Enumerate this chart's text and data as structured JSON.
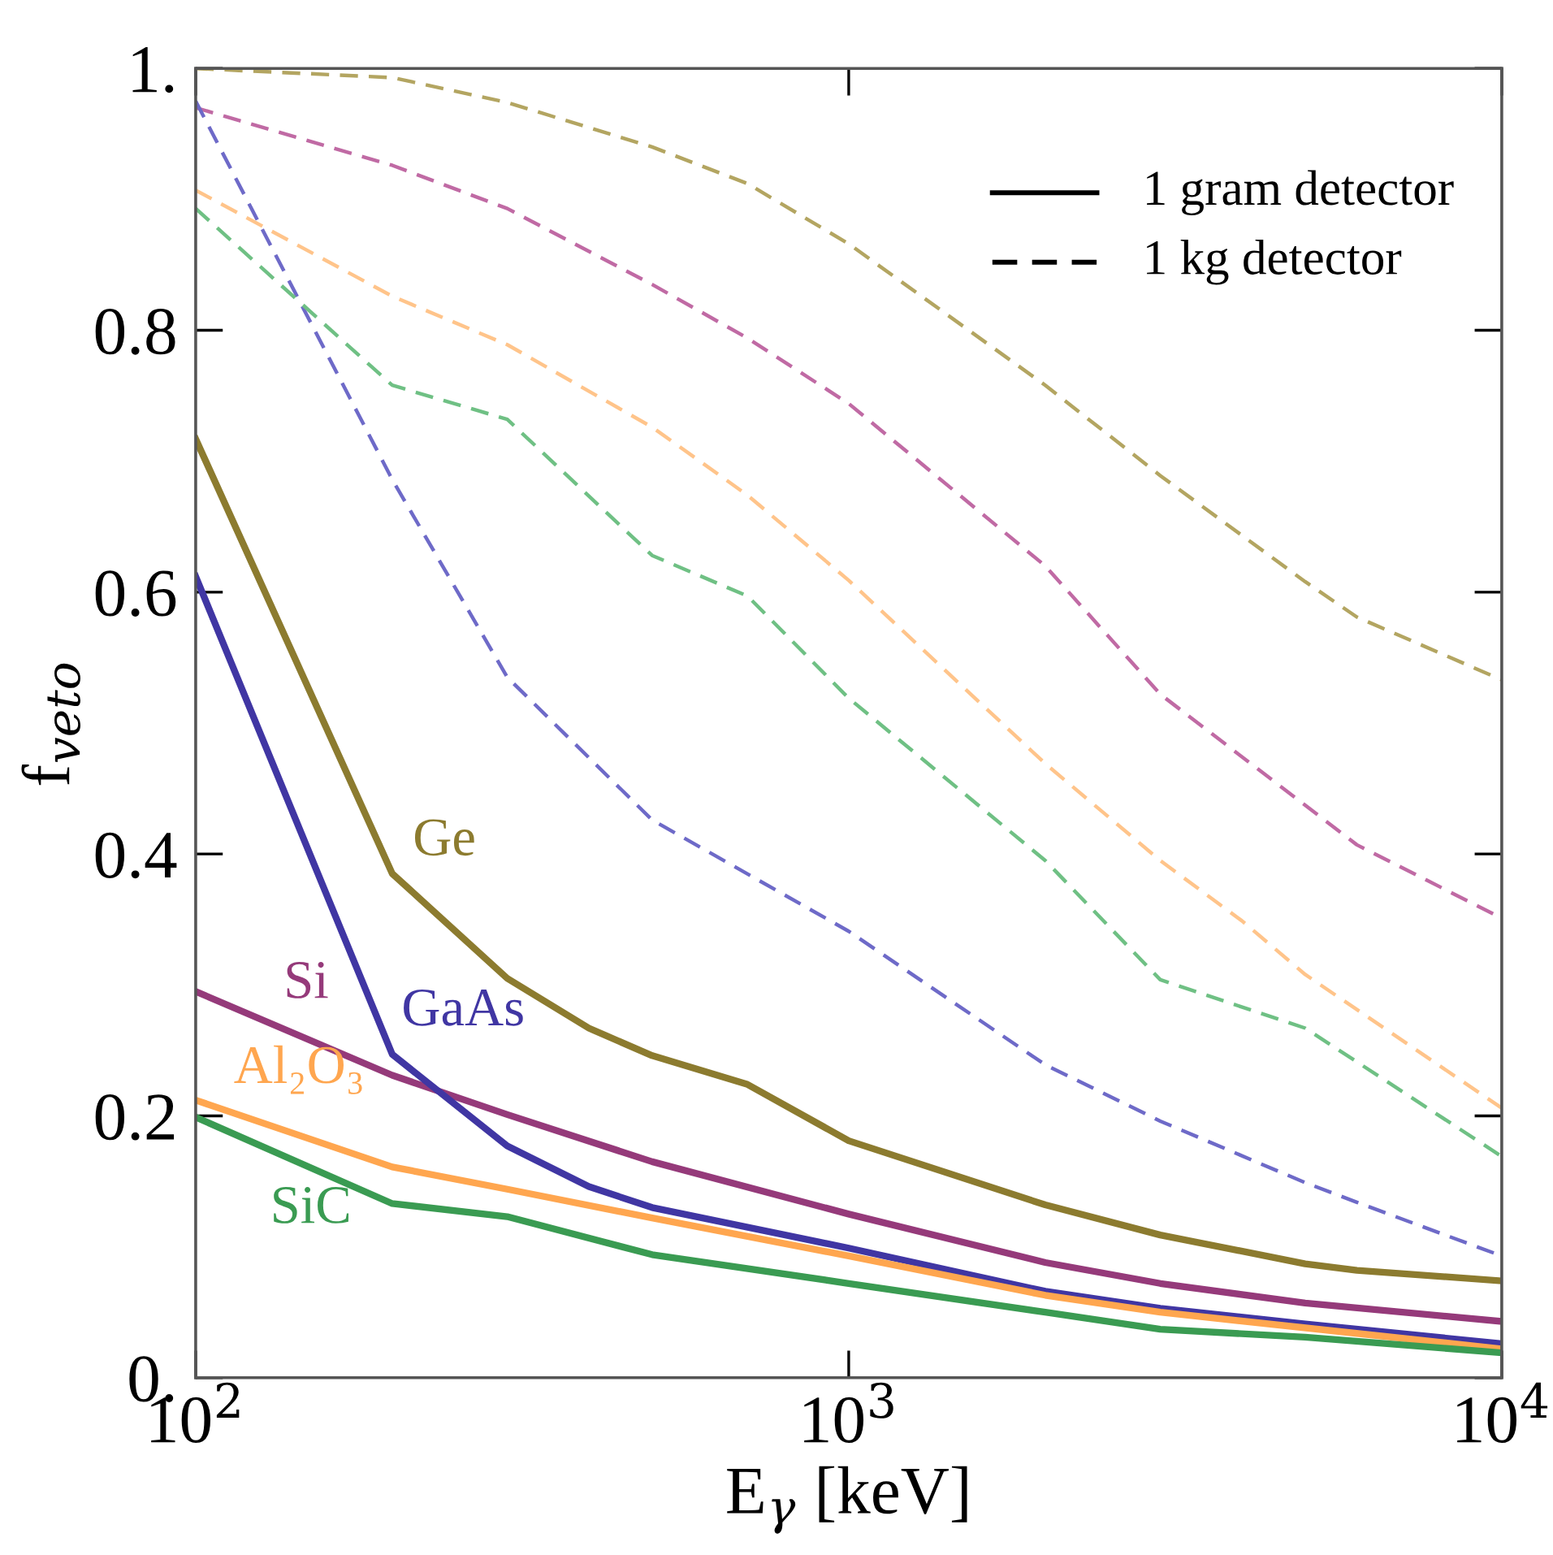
{
  "chart_data": {
    "type": "line",
    "xlabel": "E$_{γ}$ [keV]",
    "ylabel": "f$_{veto}$",
    "log": "x",
    "xlim": [
      100,
      10000
    ],
    "ylim": [
      0,
      1
    ],
    "xticks": [
      {
        "value": 100,
        "label": "10$^{2}$"
      },
      {
        "value": 1000,
        "label": "10$^{3}$"
      },
      {
        "value": 10000,
        "label": "10$^{4}$"
      }
    ],
    "yticks": [
      {
        "value": 0,
        "label": "0."
      },
      0.2,
      0.4,
      0.6,
      0.8,
      {
        "value": 1,
        "label": "1."
      }
    ],
    "grid": false,
    "marker": "none",
    "series": [
      {
        "color": "#8c7b2f",
        "line_style": "solid",
        "x": [
          100,
          200,
          300,
          400,
          500,
          700,
          1000,
          2000,
          3000,
          5000,
          6000,
          10000
        ],
        "values": [
          0.717,
          0.385,
          0.305,
          0.267,
          0.246,
          0.224,
          0.181,
          0.132,
          0.109,
          0.087,
          0.082,
          0.074
        ]
      },
      {
        "color": "#953a7a",
        "line_style": "solid",
        "x": [
          100,
          200,
          300,
          500,
          1000,
          2000,
          3000,
          5000,
          10000
        ],
        "values": [
          0.295,
          0.231,
          0.201,
          0.165,
          0.125,
          0.088,
          0.072,
          0.057,
          0.043
        ]
      },
      {
        "color": "#4036a3",
        "line_style": "solid",
        "x": [
          100,
          200,
          300,
          400,
          500,
          1000,
          2000,
          3000,
          5000,
          10000
        ],
        "values": [
          0.612,
          0.247,
          0.177,
          0.146,
          0.13,
          0.099,
          0.066,
          0.053,
          0.041,
          0.026
        ]
      },
      {
        "color": "#ffa64f",
        "line_style": "solid",
        "x": [
          100,
          200,
          300,
          500,
          1000,
          2000,
          3000,
          10000
        ],
        "values": [
          0.212,
          0.161,
          0.144,
          0.122,
          0.093,
          0.063,
          0.05,
          0.022
        ]
      },
      {
        "color": "#3a9b52",
        "line_style": "solid",
        "x": [
          100,
          200,
          300,
          500,
          1000,
          2000,
          3000,
          5000,
          10000
        ],
        "values": [
          0.199,
          0.133,
          0.123,
          0.094,
          0.072,
          0.05,
          0.037,
          0.031,
          0.019
        ]
      },
      {
        "color": "#b3a561",
        "line_style": "dashed",
        "x": [
          100,
          200,
          300,
          500,
          700,
          1000,
          2000,
          3000,
          5000,
          6000,
          10000
        ],
        "values": [
          1.0,
          0.993,
          0.974,
          0.94,
          0.912,
          0.866,
          0.758,
          0.689,
          0.608,
          0.581,
          0.533
        ]
      },
      {
        "color": "#c06aa4",
        "line_style": "dashed",
        "x": [
          100,
          200,
          300,
          500,
          700,
          1000,
          2000,
          3000,
          6000,
          10000
        ],
        "values": [
          0.97,
          0.926,
          0.893,
          0.835,
          0.794,
          0.744,
          0.62,
          0.522,
          0.407,
          0.351
        ]
      },
      {
        "color": "#6e6ac8",
        "line_style": "dashed",
        "x": [
          100,
          200,
          300,
          500,
          1000,
          2000,
          3000,
          5000,
          6000,
          10000
        ],
        "values": [
          0.975,
          0.686,
          0.535,
          0.426,
          0.341,
          0.239,
          0.196,
          0.149,
          0.134,
          0.093
        ]
      },
      {
        "color": "#ffc48a",
        "line_style": "dashed",
        "x": [
          100,
          200,
          300,
          500,
          700,
          1000,
          2000,
          3000,
          4000,
          5000,
          10000
        ],
        "values": [
          0.907,
          0.826,
          0.789,
          0.726,
          0.674,
          0.609,
          0.469,
          0.395,
          0.349,
          0.308,
          0.206
        ]
      },
      {
        "color": "#6fc084",
        "line_style": "dashed",
        "x": [
          100,
          200,
          300,
          500,
          700,
          1000,
          2000,
          3000,
          5000,
          10000
        ],
        "values": [
          0.893,
          0.758,
          0.732,
          0.628,
          0.597,
          0.519,
          0.395,
          0.304,
          0.267,
          0.169
        ]
      }
    ],
    "annotations": [
      {
        "text": "Ge",
        "x": 205,
        "y": 0.38
      },
      {
        "text": "Si",
        "x": 130,
        "y": 0.271
      },
      {
        "text": "GaAs",
        "x": 197,
        "y": 0.25
      },
      {
        "text": "Al₂O₃",
        "x": 109,
        "y": 0.206
      },
      {
        "text": "SiC",
        "x": 124,
        "y": 0.178
      },
      "1 gram detector",
      "1 kg detector"
    ]
  }
}
